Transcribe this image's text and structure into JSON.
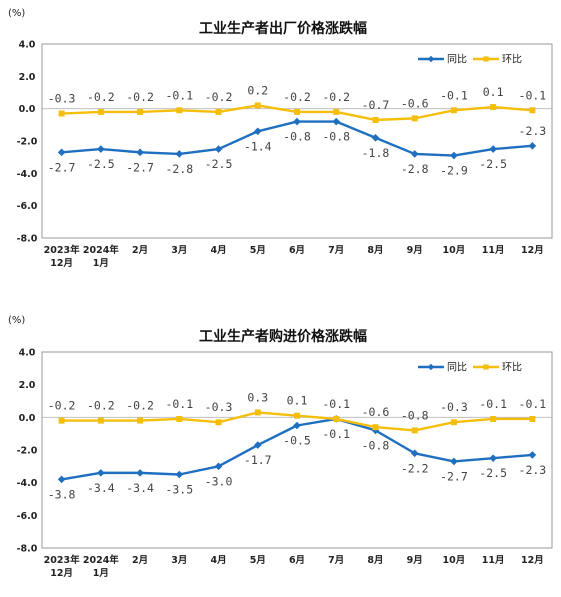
{
  "chart_data": [
    {
      "type": "line",
      "title": "工业生产者出厂价格涨跌幅",
      "unit": "(%)",
      "yticks": [
        "4.0",
        "2.0",
        "0.0",
        "-2.0",
        "-4.0",
        "-6.0",
        "-8.0"
      ],
      "ylim": [
        -8,
        4
      ],
      "categories": [
        [
          "2023年",
          "12月"
        ],
        [
          "2024年",
          "1月"
        ],
        [
          "2月"
        ],
        [
          "3月"
        ],
        [
          "4月"
        ],
        [
          "5月"
        ],
        [
          "6月"
        ],
        [
          "7月"
        ],
        [
          "8月"
        ],
        [
          "9月"
        ],
        [
          "10月"
        ],
        [
          "11月"
        ],
        [
          "12月"
        ]
      ],
      "legend_position": "top-right",
      "series": [
        {
          "name": "同比",
          "color": "#1f6fc1",
          "marker": "diamond",
          "values": [
            -2.7,
            -2.5,
            -2.7,
            -2.8,
            -2.5,
            -1.4,
            -0.8,
            -0.8,
            -1.8,
            -2.8,
            -2.9,
            -2.5,
            -2.3
          ],
          "labels": [
            "-2.7",
            "-2.5",
            "-2.7",
            "-2.8",
            "-2.5",
            "-1.4",
            "-0.8",
            "-0.8",
            "-1.8",
            "-2.8",
            "-2.9",
            "-2.5",
            "-2.3"
          ],
          "label_side": [
            "below",
            "below",
            "below",
            "below",
            "below",
            "below",
            "below",
            "below",
            "below",
            "below",
            "below",
            "below",
            "above"
          ]
        },
        {
          "name": "环比",
          "color": "#f5be0b",
          "marker": "square",
          "values": [
            -0.3,
            -0.2,
            -0.2,
            -0.1,
            -0.2,
            0.2,
            -0.2,
            -0.2,
            -0.7,
            -0.6,
            -0.1,
            0.1,
            -0.1
          ],
          "labels": [
            "-0.3",
            "-0.2",
            "-0.2",
            "-0.1",
            "-0.2",
            "0.2",
            "-0.2",
            "-0.2",
            "-0.7",
            "-0.6",
            "-0.1",
            "0.1",
            "-0.1"
          ],
          "label_side": [
            "above",
            "above",
            "above",
            "above",
            "above",
            "above",
            "above",
            "above",
            "above",
            "above",
            "above",
            "above",
            "above"
          ]
        }
      ]
    },
    {
      "type": "line",
      "title": "工业生产者购进价格涨跌幅",
      "unit": "(%)",
      "yticks": [
        "4.0",
        "2.0",
        "0.0",
        "-2.0",
        "-4.0",
        "-6.0",
        "-8.0"
      ],
      "ylim": [
        -8,
        4
      ],
      "categories": [
        [
          "2023年",
          "12月"
        ],
        [
          "2024年",
          "1月"
        ],
        [
          "2月"
        ],
        [
          "3月"
        ],
        [
          "4月"
        ],
        [
          "5月"
        ],
        [
          "6月"
        ],
        [
          "7月"
        ],
        [
          "8月"
        ],
        [
          "9月"
        ],
        [
          "10月"
        ],
        [
          "11月"
        ],
        [
          "12月"
        ]
      ],
      "legend_position": "top-right",
      "series": [
        {
          "name": "同比",
          "color": "#1f6fc1",
          "marker": "diamond",
          "values": [
            -3.8,
            -3.4,
            -3.4,
            -3.5,
            -3.0,
            -1.7,
            -0.5,
            -0.1,
            -0.8,
            -2.2,
            -2.7,
            -2.5,
            -2.3
          ],
          "labels": [
            "-3.8",
            "-3.4",
            "-3.4",
            "-3.5",
            "-3.0",
            "-1.7",
            "-0.5",
            "-0.1",
            "-0.8",
            "-2.2",
            "-2.7",
            "-2.5",
            "-2.3"
          ],
          "label_side": [
            "below",
            "below",
            "below",
            "below",
            "below",
            "below",
            "below",
            "below",
            "below",
            "below",
            "below",
            "below",
            "below"
          ]
        },
        {
          "name": "环比",
          "color": "#f5be0b",
          "marker": "square",
          "values": [
            -0.2,
            -0.2,
            -0.2,
            -0.1,
            -0.3,
            0.3,
            0.1,
            -0.1,
            -0.6,
            -0.8,
            -0.3,
            -0.1,
            -0.1
          ],
          "labels": [
            "-0.2",
            "-0.2",
            "-0.2",
            "-0.1",
            "-0.3",
            "0.3",
            "0.1",
            "-0.1",
            "-0.6",
            "-0.8",
            "-0.3",
            "-0.1",
            "-0.1"
          ],
          "label_side": [
            "above",
            "above",
            "above",
            "above",
            "above",
            "above",
            "above",
            "above",
            "above",
            "above",
            "above",
            "above",
            "above"
          ]
        }
      ]
    }
  ]
}
